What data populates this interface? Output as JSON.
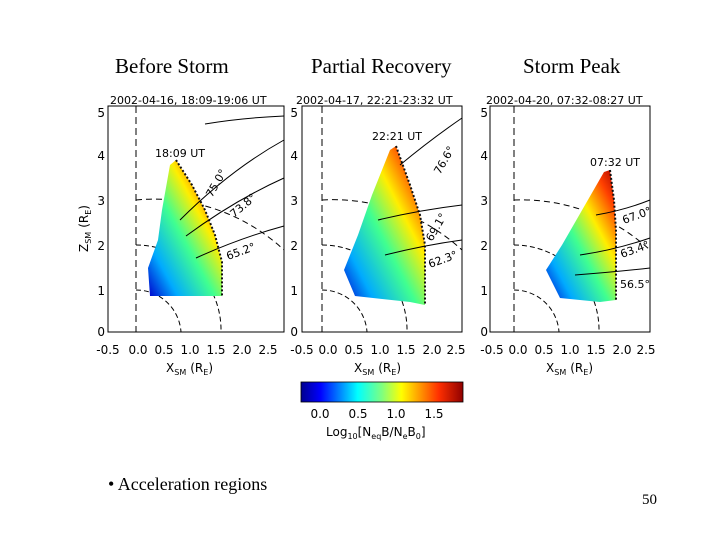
{
  "titles": [
    "Before Storm",
    "Partial Recovery",
    "Storm Peak"
  ],
  "panels": [
    {
      "header": "2002-04-16, 18:09-19:06 UT",
      "time_label": "18:09 UT",
      "lat_labels": [
        "75.0°",
        "73.8°",
        "65.2°"
      ]
    },
    {
      "header": "2002-04-17, 22:21-23:32 UT",
      "time_label": "22:21 UT",
      "lat_labels": [
        "76.6°",
        "69.1°",
        "62.3°"
      ]
    },
    {
      "header": "2002-04-20, 07:32-08:27 UT",
      "time_label": "07:32 UT",
      "lat_labels": [
        "67.0°",
        "63.4°",
        "56.5°"
      ]
    }
  ],
  "axes": {
    "y_label": "Z",
    "y_label_sub": "SM",
    "y_label_unit": "(R",
    "y_label_unit_sub": "E",
    "x_label": "X",
    "x_label_sub": "SM",
    "x_label_unit": "(R",
    "x_label_unit_sub": "E",
    "y_ticks": [
      "0",
      "1",
      "2",
      "3",
      "4",
      "5"
    ],
    "x_ticks": [
      "-0.5",
      "0.0",
      "0.5",
      "1.0",
      "1.5",
      "2.0",
      "2.5"
    ]
  },
  "colorbar": {
    "ticks": [
      "0.0",
      "0.5",
      "1.0",
      "1.5"
    ],
    "label": "Log",
    "label_sub": "10",
    "label_rest": "[N",
    "label_rest_sub": "eq",
    "label_rest2": "B/N",
    "label_rest2_sub": "e",
    "label_rest3": "B",
    "label_rest3_sub": "0",
    "label_end": "]"
  },
  "bullet_text": "• Acceleration regions",
  "page_number": "50"
}
